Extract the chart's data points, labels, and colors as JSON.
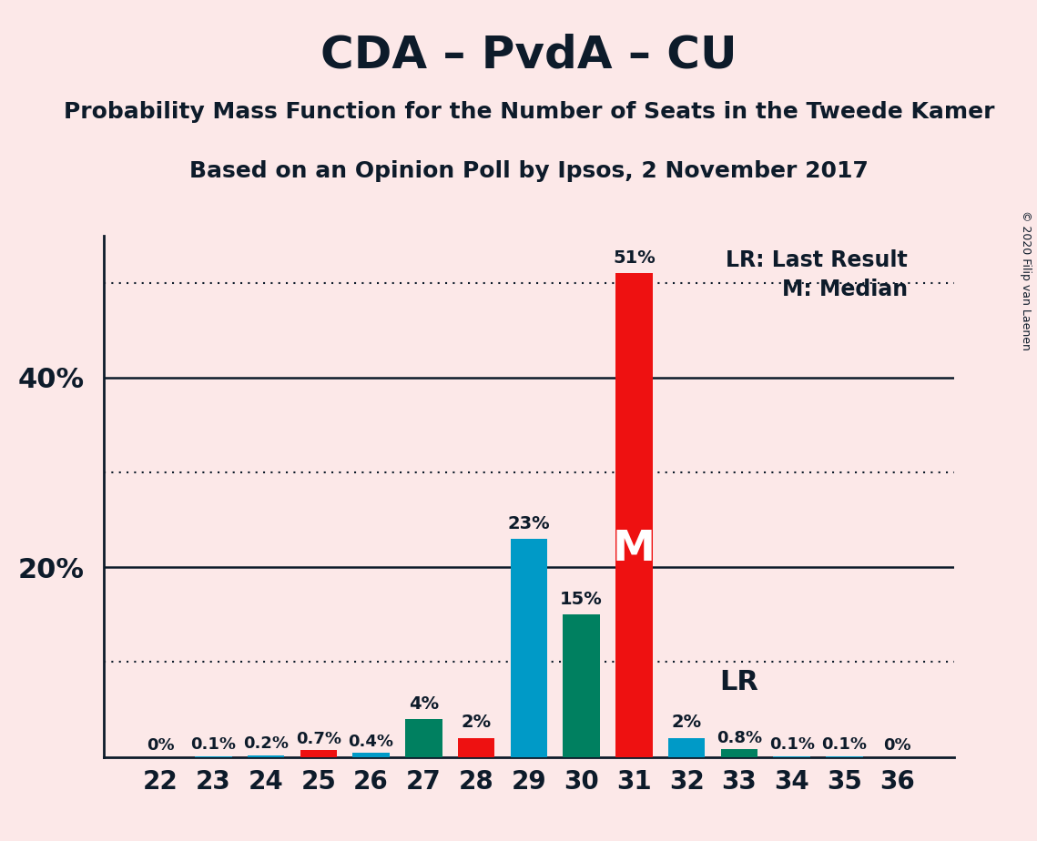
{
  "title": "CDA – PvdA – CU",
  "subtitle1": "Probability Mass Function for the Number of Seats in the Tweede Kamer",
  "subtitle2": "Based on an Opinion Poll by Ipsos, 2 November 2017",
  "background_color": "#fce8e8",
  "seats": [
    22,
    23,
    24,
    25,
    26,
    27,
    28,
    29,
    30,
    31,
    32,
    33,
    34,
    35,
    36
  ],
  "values": [
    0.0,
    0.1,
    0.2,
    0.7,
    0.4,
    4.0,
    2.0,
    23.0,
    15.0,
    51.0,
    2.0,
    0.8,
    0.1,
    0.1,
    0.0
  ],
  "labels": [
    "0%",
    "0.1%",
    "0.2%",
    "0.7%",
    "0.4%",
    "4%",
    "2%",
    "23%",
    "15%",
    "51%",
    "2%",
    "0.8%",
    "0.1%",
    "0.1%",
    "0%"
  ],
  "colors": [
    "#009ac7",
    "#009ac7",
    "#009ac7",
    "#ee1111",
    "#009ac7",
    "#008060",
    "#ee1111",
    "#009ac7",
    "#008060",
    "#ee1111",
    "#009ac7",
    "#008060",
    "#009ac7",
    "#009ac7",
    "#009ac7"
  ],
  "median_seat": 31,
  "last_result_seat": 33,
  "median_label": "M",
  "lr_label": "LR",
  "legend_lr": "LR: Last Result",
  "legend_m": "M: Median",
  "ylim": [
    0,
    55
  ],
  "solid_lines": [
    20,
    40
  ],
  "dotted_lines": [
    10,
    30,
    50
  ],
  "ytick_positions": [
    20,
    40
  ],
  "ytick_labels": [
    "20%",
    "40%"
  ],
  "copyright": "© 2020 Filip van Laenen",
  "title_fontsize": 36,
  "subtitle_fontsize": 18,
  "bar_width": 0.7,
  "text_color": "#0d1b2a"
}
